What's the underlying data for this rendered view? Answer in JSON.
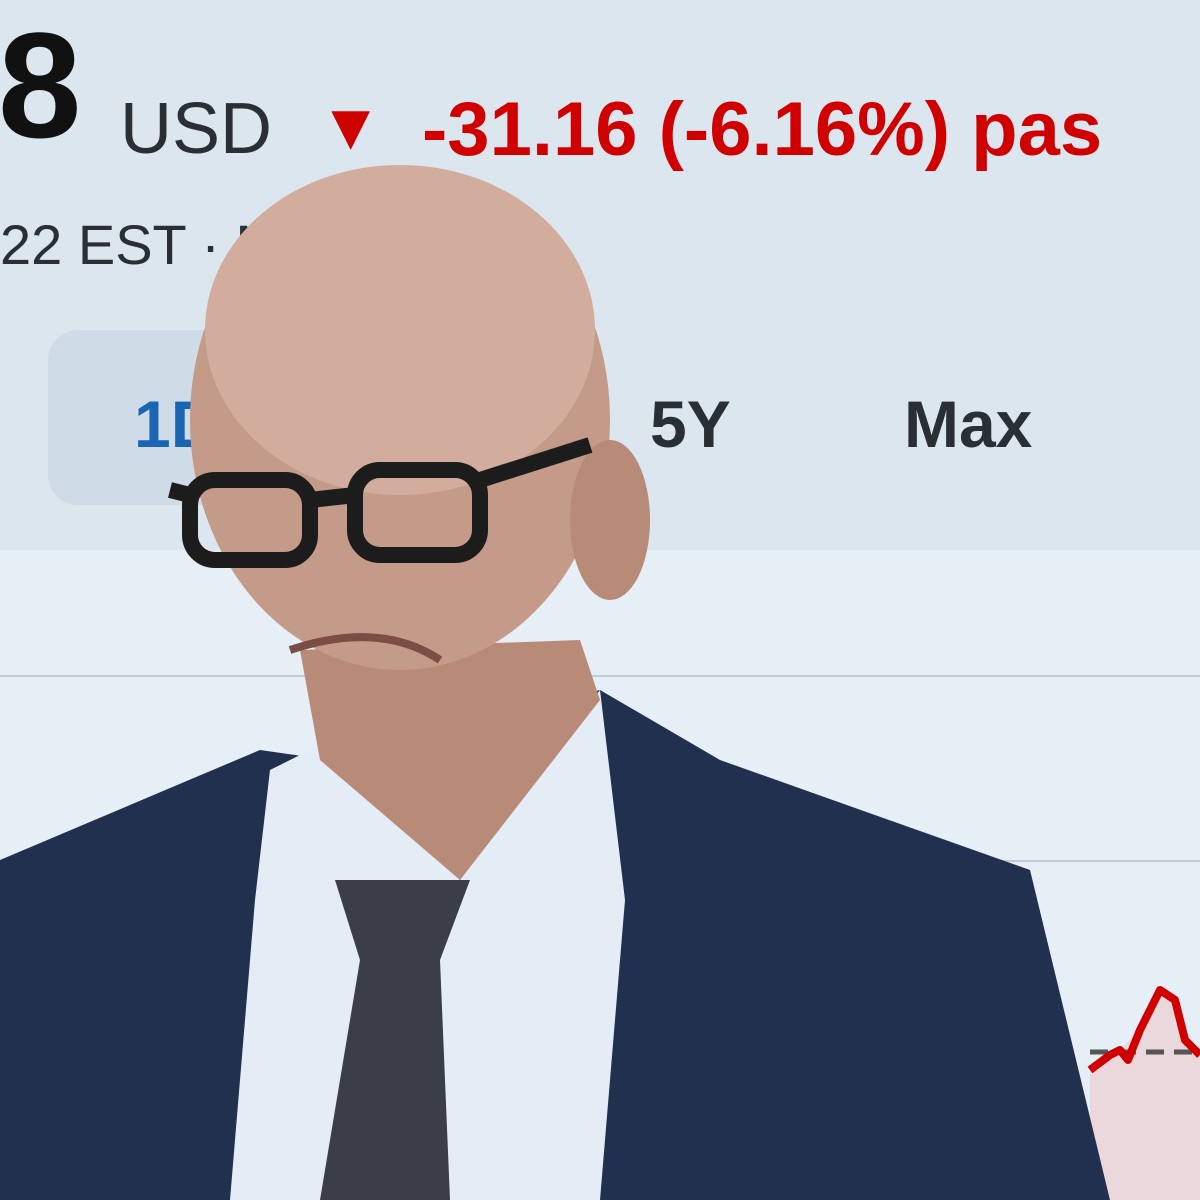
{
  "quote": {
    "price_fragment": "8",
    "currency": "USD",
    "direction_icon": "down-triangle-icon",
    "change_text": "-31.16 (-6.16%) pas",
    "timestamp_fragment": "22 EST · M",
    "change_color": "#d10000"
  },
  "range_tabs": [
    {
      "label": "1D",
      "selected": true
    },
    {
      "label": "5Y",
      "selected": false
    },
    {
      "label": "Max",
      "selected": false
    }
  ],
  "chart_line_color": "#d10000"
}
